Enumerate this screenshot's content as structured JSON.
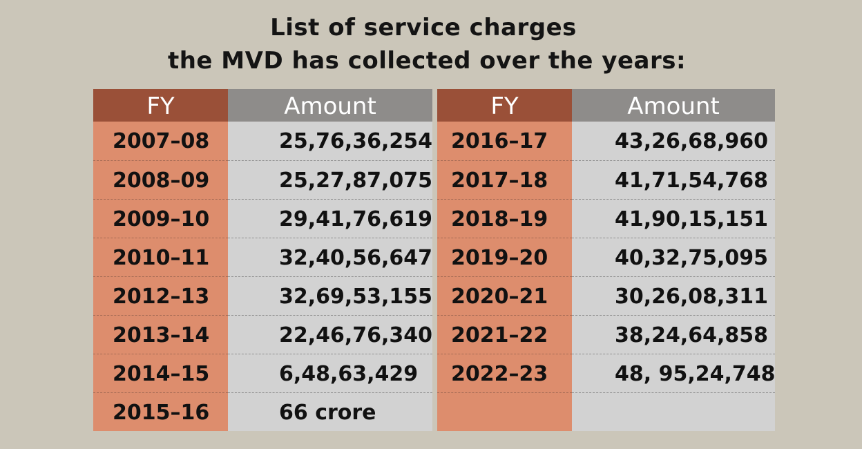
{
  "title_line1": "List of service charges",
  "title_line2": "the MVD has collected over the years:",
  "headers": {
    "fy": "FY",
    "amount": "Amount"
  },
  "colors": {
    "background": "#cbc6b9",
    "fy_header": "#9a5038",
    "amount_header": "#8e8c8a",
    "fy_cell": "#dd8d6d",
    "amount_cell": "#d2d2d2"
  },
  "chart_data": {
    "type": "table",
    "title": "List of service charges the MVD has collected over the years:",
    "columns": [
      "FY",
      "Amount"
    ],
    "left_rows": [
      {
        "fy": "2007–08",
        "amount": "25,76,36,254"
      },
      {
        "fy": "2008–09",
        "amount": "25,27,87,075"
      },
      {
        "fy": "2009–10",
        "amount": "29,41,76,619"
      },
      {
        "fy": "2010–11",
        "amount": "32,40,56,647"
      },
      {
        "fy": "2012–13",
        "amount": "32,69,53,155"
      },
      {
        "fy": "2013–14",
        "amount": "22,46,76,340"
      },
      {
        "fy": "2014–15",
        "amount": "6,48,63,429"
      },
      {
        "fy": "2015–16",
        "amount": "66 crore"
      }
    ],
    "right_rows": [
      {
        "fy": "2016–17",
        "amount": "43,26,68,960"
      },
      {
        "fy": "2017–18",
        "amount": "41,71,54,768"
      },
      {
        "fy": "2018–19",
        "amount": "41,90,15,151"
      },
      {
        "fy": "2019–20",
        "amount": "40,32,75,095"
      },
      {
        "fy": "2020–21",
        "amount": "30,26,08,311"
      },
      {
        "fy": "2021–22",
        "amount": "38,24,64,858"
      },
      {
        "fy": "2022–23",
        "amount": "48, 95,24,748."
      },
      {
        "fy": "",
        "amount": ""
      }
    ]
  }
}
